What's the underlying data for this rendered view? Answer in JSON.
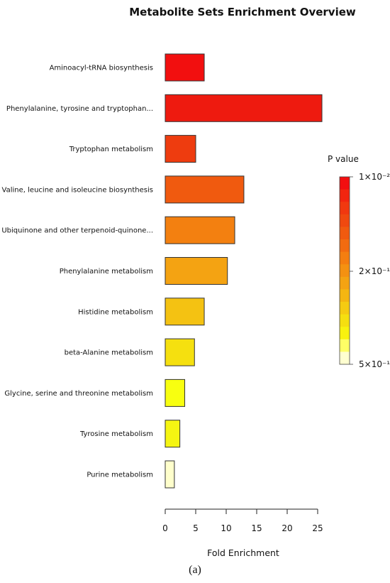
{
  "chart_data": {
    "type": "bar",
    "orientation": "horizontal",
    "title": "Metabolite Sets Enrichment Overview",
    "xlabel": "Fold Enrichment",
    "ylabel": "",
    "xlim": [
      0,
      25
    ],
    "xticks": [
      0,
      5,
      10,
      15,
      20,
      25
    ],
    "grid": false,
    "categories": [
      "Aminoacyl-tRNA biosynthesis",
      "Phenylalanine, tyrosine and tryptophan...",
      "Tryptophan metabolism",
      "Valine, leucine and isoleucine biosynthesis",
      "Ubiquinone and other terpenoid-quinone...",
      "Phenylalanine metabolism",
      "Histidine metabolism",
      "beta-Alanine metabolism",
      "Glycine, serine and threonine metabolism",
      "Tyrosine metabolism",
      "Purine metabolism"
    ],
    "values": [
      6.4,
      25.7,
      5.0,
      12.9,
      11.4,
      10.2,
      6.4,
      4.8,
      3.2,
      2.4,
      1.5
    ],
    "bar_colors": [
      "#f20f0f",
      "#ee1a0f",
      "#ee3c0f",
      "#f05a0f",
      "#f38010",
      "#f4a312",
      "#f4c212",
      "#f5e00f",
      "#f8ff10",
      "#f5f512",
      "#ffffcc"
    ],
    "legend": {
      "title": "P value",
      "position": "right",
      "scale": "log",
      "labels": [
        "1×10⁻²",
        "2×10⁻¹",
        "5×10⁻¹"
      ],
      "colors": [
        "#f30f10",
        "#f2250f",
        "#f1380f",
        "#f0490f",
        "#f15a0f",
        "#f26b10",
        "#f47e10",
        "#f49111",
        "#f4a312",
        "#f4b612",
        "#f5cb12",
        "#f5df10",
        "#f8f20f",
        "#ffff66",
        "#ffffd0"
      ]
    },
    "caption": "(a)"
  }
}
